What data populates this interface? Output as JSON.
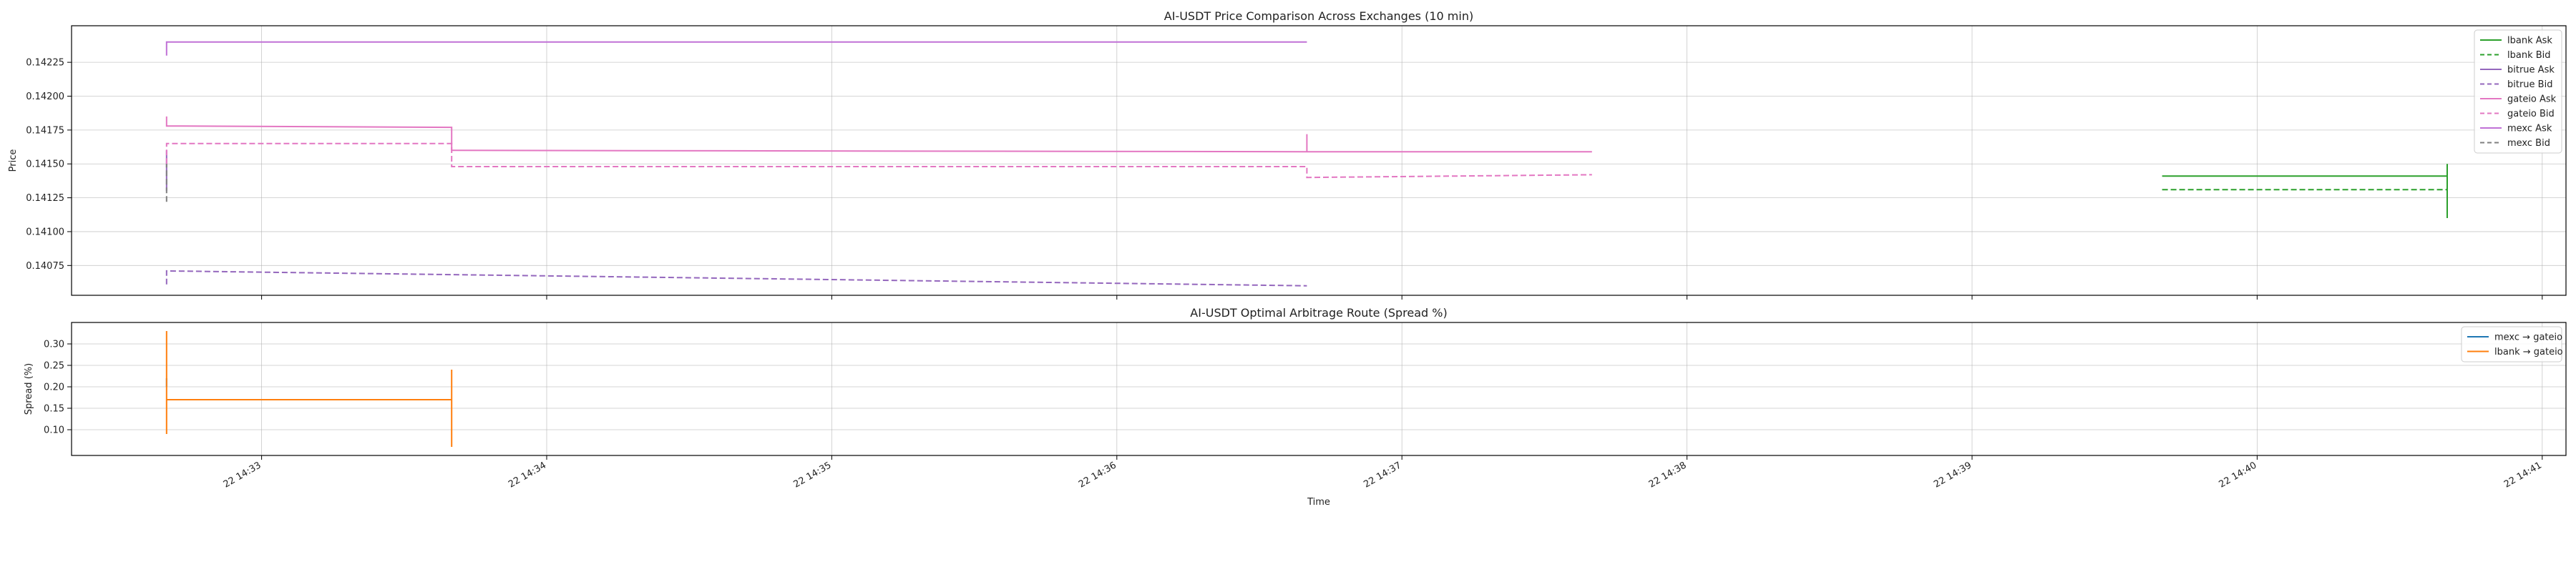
{
  "x_label": "Time",
  "x_ticks": [
    "22 14:33",
    "22 14:34",
    "22 14:35",
    "22 14:36",
    "22 14:37",
    "22 14:38",
    "22 14:39",
    "22 14:40",
    "22 14:41"
  ],
  "chart_data": [
    {
      "type": "line",
      "title": "AI-USDT Price Comparison Across Exchanges (10 min)",
      "xlabel": "",
      "ylabel": "Price",
      "ylim": [
        0.14053,
        0.14252
      ],
      "yticks": [
        "0.14075",
        "0.14100",
        "0.14125",
        "0.14150",
        "0.14175",
        "0.14200",
        "0.14225"
      ],
      "grid": true,
      "legend_position": "top-right",
      "series": [
        {
          "name": "lbank Ask",
          "color": "#2ca02c",
          "dashed": false,
          "points": [
            [
              "14:39:40",
              0.14141
            ],
            [
              "14:40:40",
              0.14141
            ],
            [
              "14:40:40",
              0.1411
            ],
            [
              "14:40:40",
              0.1415
            ]
          ]
        },
        {
          "name": "lbank Bid",
          "color": "#2ca02c",
          "dashed": true,
          "points": [
            [
              "14:39:40",
              0.14131
            ],
            [
              "14:40:40",
              0.14131
            ]
          ]
        },
        {
          "name": "bitrue Ask",
          "color": "#9467bd",
          "dashed": false,
          "points": [
            [
              "14:32:40",
              0.14141
            ],
            [
              "14:32:40",
              0.1416
            ],
            [
              "14:32:40",
              0.1413
            ]
          ]
        },
        {
          "name": "bitrue Bid",
          "color": "#9467bd",
          "dashed": true,
          "points": [
            [
              "14:32:40",
              0.14061
            ],
            [
              "14:32:40",
              0.14071
            ],
            [
              "14:36:40",
              0.1406
            ]
          ]
        },
        {
          "name": "gateio Ask",
          "color": "#e377c2",
          "dashed": false,
          "points": [
            [
              "14:32:40",
              0.14185
            ],
            [
              "14:32:40",
              0.14178
            ],
            [
              "14:33:40",
              0.14177
            ],
            [
              "14:33:40",
              0.1416
            ],
            [
              "14:36:40",
              0.14159
            ],
            [
              "14:36:40",
              0.14172
            ],
            [
              "14:36:40",
              0.14159
            ],
            [
              "14:37:40",
              0.14159
            ]
          ]
        },
        {
          "name": "gateio Bid",
          "color": "#e377c2",
          "dashed": true,
          "points": [
            [
              "14:32:40",
              0.1415
            ],
            [
              "14:32:40",
              0.14165
            ],
            [
              "14:33:40",
              0.14165
            ],
            [
              "14:33:40",
              0.14148
            ],
            [
              "14:36:40",
              0.14148
            ],
            [
              "14:36:40",
              0.1414
            ],
            [
              "14:37:40",
              0.14142
            ]
          ]
        },
        {
          "name": "mexc Ask",
          "color": "#c071d6",
          "dashed": false,
          "points": [
            [
              "14:32:40",
              0.1423
            ],
            [
              "14:32:40",
              0.1424
            ],
            [
              "14:36:40",
              0.1424
            ]
          ]
        },
        {
          "name": "mexc Bid",
          "color": "#7f7f7f",
          "dashed": true,
          "points": [
            [
              "14:32:40",
              0.14122
            ],
            [
              "14:32:40",
              0.1415
            ]
          ]
        }
      ]
    },
    {
      "type": "line",
      "title": "AI-USDT Optimal Arbitrage Route (Spread %)",
      "xlabel": "Time",
      "ylabel": "Spread (%)",
      "ylim": [
        0.04,
        0.35
      ],
      "yticks": [
        "0.10",
        "0.15",
        "0.20",
        "0.25",
        "0.30"
      ],
      "grid": true,
      "legend_position": "top-right",
      "series": [
        {
          "name": "mexc → gateio",
          "color": "#1f77b4",
          "dashed": false,
          "points": [
            [
              "14:32:40",
              0.2
            ],
            [
              "14:32:40",
              0.22
            ]
          ]
        },
        {
          "name": "lbank → gateio",
          "color": "#ff7f0e",
          "dashed": false,
          "points": [
            [
              "14:32:40",
              0.09
            ],
            [
              "14:32:40",
              0.33
            ],
            [
              "14:32:40",
              0.17
            ],
            [
              "14:33:40",
              0.17
            ],
            [
              "14:33:40",
              0.06
            ],
            [
              "14:33:40",
              0.24
            ]
          ]
        }
      ]
    }
  ]
}
